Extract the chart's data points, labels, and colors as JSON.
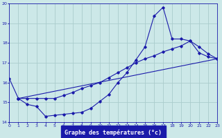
{
  "title": "Graphe des températures (°c)",
  "bg_color": "#cce8e8",
  "grid_color": "#aacccc",
  "line_color": "#1a1aaa",
  "xlim": [
    0,
    23
  ],
  "ylim": [
    14,
    20
  ],
  "yticks": [
    14,
    15,
    16,
    17,
    18,
    19,
    20
  ],
  "xticks": [
    0,
    1,
    2,
    3,
    4,
    5,
    6,
    7,
    8,
    9,
    10,
    11,
    12,
    13,
    14,
    15,
    16,
    17,
    18,
    19,
    20,
    21,
    22,
    23
  ],
  "series1_x": [
    0,
    1,
    2,
    3,
    4,
    5,
    6,
    7,
    8,
    9,
    10,
    11,
    12,
    13,
    14,
    15,
    16,
    17,
    18,
    19,
    20,
    21,
    22,
    23
  ],
  "series1_y": [
    16.2,
    15.2,
    14.9,
    14.8,
    14.3,
    14.35,
    14.4,
    14.45,
    14.5,
    14.7,
    15.05,
    15.4,
    16.0,
    16.5,
    17.15,
    17.8,
    19.35,
    19.8,
    18.2,
    18.2,
    18.1,
    17.8,
    17.45,
    17.2
  ],
  "series2_x": [
    1,
    2,
    3,
    4,
    5,
    6,
    7,
    8,
    9,
    10,
    11,
    12,
    13,
    14,
    15,
    16,
    17,
    18,
    19,
    20,
    21,
    22,
    23
  ],
  "series2_y": [
    15.2,
    15.2,
    15.2,
    15.2,
    15.2,
    15.35,
    15.5,
    15.7,
    15.85,
    16.0,
    16.25,
    16.5,
    16.75,
    17.0,
    17.2,
    17.35,
    17.55,
    17.7,
    17.85,
    18.1,
    17.5,
    17.3,
    17.2
  ],
  "series3_x": [
    1,
    23
  ],
  "series3_y": [
    15.2,
    17.2
  ]
}
